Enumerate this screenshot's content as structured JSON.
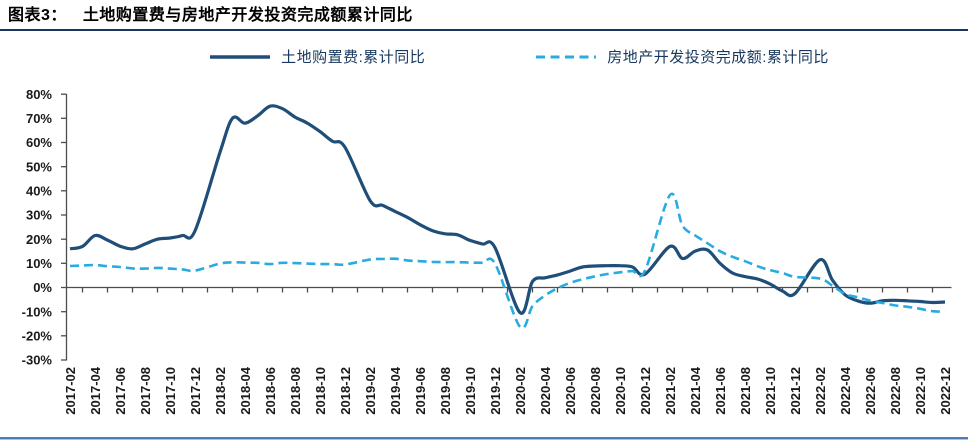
{
  "page": {
    "title_prefix": "图表3：",
    "title": "土地购置费与房地产开发投资完成额累计同比"
  },
  "colors": {
    "title_text": "#000000",
    "title_rule": "#17375E",
    "legend_text": "#17375E",
    "axis_line": "#4d4d4d",
    "tick_label": "#1a1a1a",
    "bottom_rule_dark": "#4E7CB8",
    "bottom_rule_light": "#A9C2DE",
    "series_solid": "#1F4E79",
    "series_dashed": "#29ABE2",
    "background": "#ffffff"
  },
  "chart_data": {
    "type": "line",
    "title": "图表3： 土地购置费与房地产开发投资完成额累计同比",
    "xlabel": "",
    "ylabel": "",
    "ylim": [
      -30,
      80
    ],
    "y_tick_step": 10,
    "y_tick_labels": [
      "80%",
      "70%",
      "60%",
      "50%",
      "40%",
      "30%",
      "20%",
      "10%",
      "0%",
      "-10%",
      "-20%",
      "-30%"
    ],
    "grid": false,
    "legend_position": "top-center",
    "x_tick_label_rotation": -90,
    "categories": [
      "2017-02",
      "2017-03",
      "2017-04",
      "2017-05",
      "2017-06",
      "2017-07",
      "2017-08",
      "2017-09",
      "2017-10",
      "2017-11",
      "2017-12",
      "2018-02",
      "2018-03",
      "2018-04",
      "2018-05",
      "2018-06",
      "2018-07",
      "2018-08",
      "2018-09",
      "2018-10",
      "2018-11",
      "2018-12",
      "2019-02",
      "2019-03",
      "2019-04",
      "2019-05",
      "2019-06",
      "2019-07",
      "2019-08",
      "2019-09",
      "2019-10",
      "2019-11",
      "2019-12",
      "2020-02",
      "2020-03",
      "2020-04",
      "2020-05",
      "2020-06",
      "2020-07",
      "2020-08",
      "2020-09",
      "2020-10",
      "2020-11",
      "2020-12",
      "2021-02",
      "2021-03",
      "2021-04",
      "2021-05",
      "2021-06",
      "2021-07",
      "2021-08",
      "2021-09",
      "2021-10",
      "2021-11",
      "2021-12",
      "2022-02",
      "2022-03",
      "2022-04",
      "2022-05",
      "2022-06",
      "2022-07",
      "2022-08",
      "2022-09",
      "2022-10",
      "2022-11",
      "2022-12"
    ],
    "x_tick_labels": [
      "2017-02",
      "2017-04",
      "2017-06",
      "2017-08",
      "2017-10",
      "2017-12",
      "2018-02",
      "2018-04",
      "2018-06",
      "2018-08",
      "2018-10",
      "2018-12",
      "2019-02",
      "2019-04",
      "2019-06",
      "2019-08",
      "2019-10",
      "2019-12",
      "2020-02",
      "2020-04",
      "2020-06",
      "2020-08",
      "2020-10",
      "2020-12",
      "2021-02",
      "2021-04",
      "2021-06",
      "2021-08",
      "2021-10",
      "2021-12",
      "2022-02",
      "2022-04",
      "2022-06",
      "2022-08",
      "2022-10",
      "2022-12"
    ],
    "series": [
      {
        "name": "土地购置费:累计同比",
        "style": "solid",
        "color": "#1F4E79",
        "unit": "%",
        "values": [
          16.0,
          17.0,
          21.5,
          19.6,
          17.1,
          16.0,
          18.0,
          20.0,
          20.5,
          21.5,
          23.4,
          56.0,
          70.0,
          68.0,
          71.0,
          75.0,
          74.0,
          70.5,
          68.0,
          64.5,
          60.5,
          58.0,
          36.0,
          34.0,
          31.5,
          29.0,
          26.0,
          23.5,
          22.2,
          21.8,
          19.5,
          18.0,
          16.5,
          -10.4,
          2.5,
          4.0,
          5.2,
          6.8,
          8.5,
          8.9,
          9.0,
          9.0,
          8.5,
          5.5,
          17.0,
          12.0,
          15.0,
          15.5,
          10.0,
          6.0,
          4.5,
          3.5,
          1.5,
          -1.5,
          -2.5,
          11.5,
          3.0,
          -3.0,
          -5.5,
          -6.5,
          -5.5,
          -5.3,
          -5.5,
          -5.8,
          -6.2,
          -6.0
        ]
      },
      {
        "name": "房地产开发投资完成额:累计同比",
        "style": "dashed",
        "color": "#29ABE2",
        "unit": "%",
        "values": [
          8.9,
          9.1,
          9.3,
          8.8,
          8.5,
          7.9,
          7.8,
          8.1,
          7.8,
          7.5,
          7.0,
          9.9,
          10.4,
          10.3,
          10.2,
          9.7,
          10.2,
          10.1,
          9.9,
          9.7,
          9.7,
          9.5,
          11.6,
          11.8,
          11.9,
          11.2,
          10.9,
          10.6,
          10.5,
          10.5,
          10.3,
          10.2,
          9.9,
          -16.3,
          -7.7,
          -3.3,
          -0.3,
          1.9,
          3.4,
          4.6,
          5.6,
          6.3,
          6.8,
          7.0,
          38.3,
          25.6,
          21.6,
          18.3,
          15.0,
          12.7,
          10.9,
          8.8,
          7.2,
          6.0,
          4.4,
          3.7,
          0.7,
          -2.7,
          -4.0,
          -5.4,
          -6.4,
          -7.4,
          -8.0,
          -8.8,
          -9.8,
          -10.0
        ]
      }
    ]
  }
}
